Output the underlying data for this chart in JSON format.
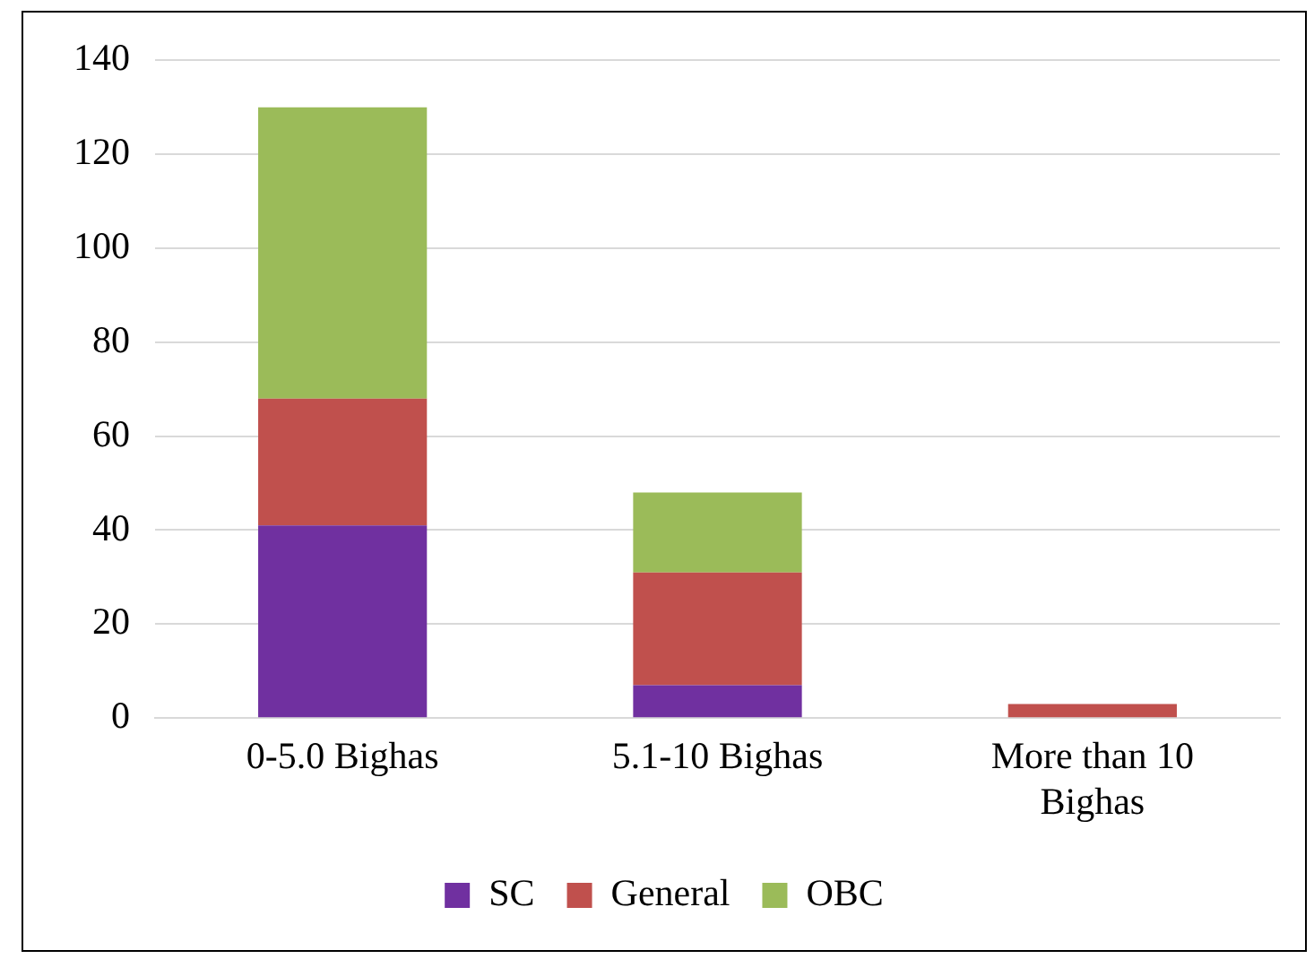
{
  "chart_data": {
    "type": "bar",
    "stacked": true,
    "categories": [
      "0-5.0 Bighas",
      "5.1-10 Bighas",
      "More than 10 Bighas"
    ],
    "series": [
      {
        "name": "SC",
        "color": "#7030a0",
        "values": [
          41,
          7,
          0
        ]
      },
      {
        "name": "General",
        "color": "#c0504d",
        "values": [
          27,
          24,
          3
        ]
      },
      {
        "name": "OBC",
        "color": "#9bbb59",
        "values": [
          62,
          17,
          0
        ]
      }
    ],
    "ylim": [
      0,
      140
    ],
    "yticks": [
      0,
      20,
      40,
      60,
      80,
      100,
      120,
      140
    ],
    "grid": "y",
    "legend": "bottom"
  }
}
